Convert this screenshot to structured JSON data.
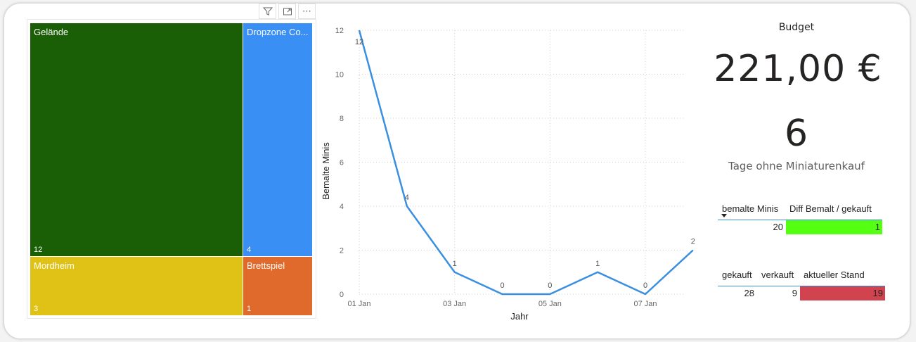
{
  "visual_header": {
    "filter_icon": "filter-icon",
    "focus_icon": "focus-mode-icon",
    "more_label": "⋯"
  },
  "treemap": {
    "tiles": [
      {
        "label": "Gelände",
        "value": "12",
        "color": "#1a5e05"
      },
      {
        "label": "Dropzone Co...",
        "value": "4",
        "color": "#3a8ff5"
      },
      {
        "label": "Mordheim",
        "value": "3",
        "color": "#dfc215"
      },
      {
        "label": "Brettspiel",
        "value": "1",
        "color": "#e06a2c"
      }
    ]
  },
  "chart_data": {
    "type": "line",
    "x": [
      "01 Jan",
      "02 Jan",
      "03 Jan",
      "04 Jan",
      "05 Jan",
      "06 Jan",
      "07 Jan",
      "08 Jan"
    ],
    "x_tick_labels": [
      "01 Jan",
      "03 Jan",
      "05 Jan",
      "07 Jan"
    ],
    "series": [
      {
        "values": [
          12,
          4,
          1,
          0,
          0,
          1,
          0,
          2
        ],
        "color": "#3a8fe0"
      }
    ],
    "data_labels": [
      "12",
      "4",
      "1",
      "0",
      "0",
      "1",
      "0",
      "2"
    ],
    "y_ticks": [
      "0",
      "2",
      "4",
      "6",
      "8",
      "10",
      "12"
    ],
    "ylim": [
      0,
      12
    ],
    "xlabel": "Jahr",
    "ylabel": "Bemalte Minis",
    "grid": true
  },
  "budget": {
    "title": "Budget",
    "value": "221,00 €"
  },
  "days": {
    "value": "6",
    "label": "Tage ohne Miniaturenkauf"
  },
  "table1": {
    "headers": [
      "bemalte Minis",
      "Diff Bemalt / gekauft"
    ],
    "sort_icon": "sort-descending-icon",
    "row": [
      "20",
      "1"
    ],
    "diff_color": "#55ff12"
  },
  "table2": {
    "headers": [
      "gekauft",
      "verkauft",
      "aktueller Stand"
    ],
    "row": [
      "28",
      "9",
      "19"
    ],
    "stand_color": "#d1434e"
  }
}
